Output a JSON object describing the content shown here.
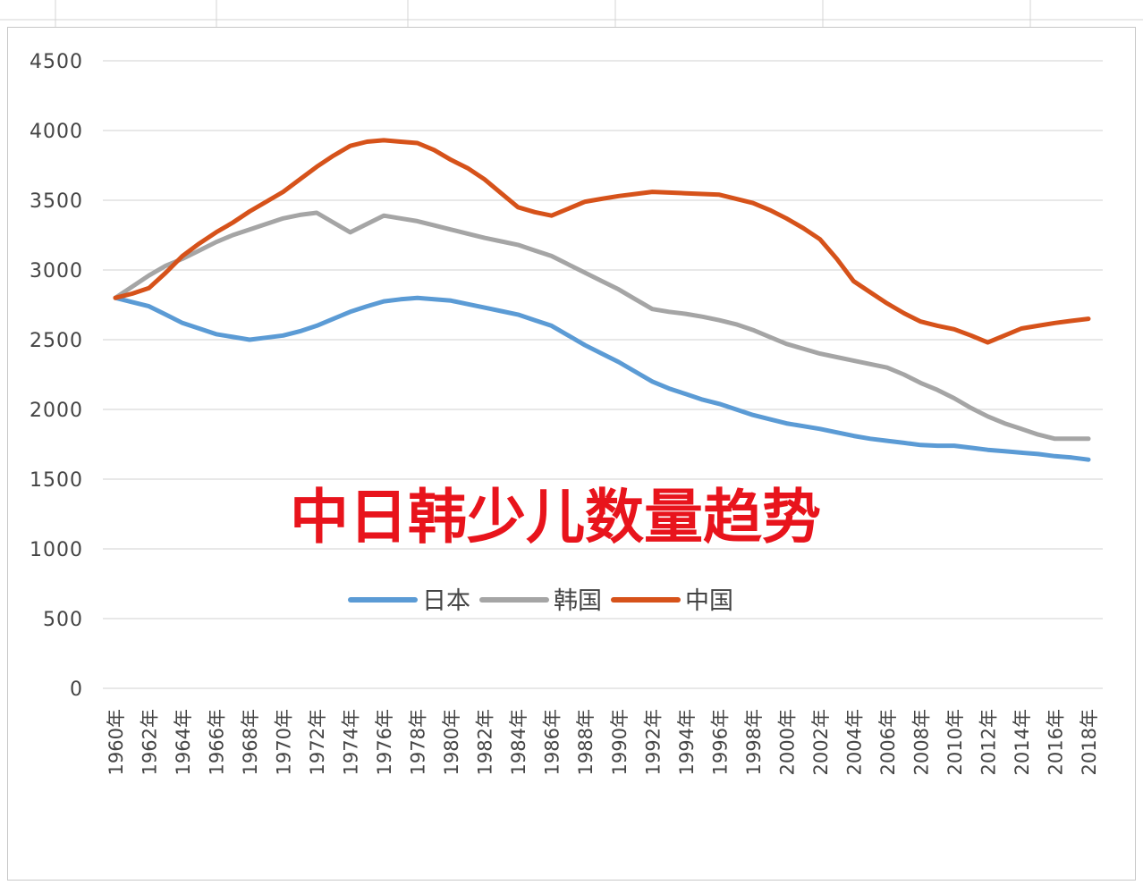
{
  "chart_data": {
    "type": "line",
    "title": "中日韩少儿数量趋势",
    "xlabel": "",
    "ylabel": "",
    "ylim": [
      0,
      4500
    ],
    "yticks": [
      0,
      500,
      1000,
      1500,
      2000,
      2500,
      3000,
      3500,
      4000,
      4500
    ],
    "grid": true,
    "legend_position": "inside-center",
    "categories": [
      "1960年",
      "1961年",
      "1962年",
      "1963年",
      "1964年",
      "1965年",
      "1966年",
      "1967年",
      "1968年",
      "1969年",
      "1970年",
      "1971年",
      "1972年",
      "1973年",
      "1974年",
      "1975年",
      "1976年",
      "1977年",
      "1978年",
      "1979年",
      "1980年",
      "1981年",
      "1982年",
      "1983年",
      "1984年",
      "1985年",
      "1986年",
      "1987年",
      "1988年",
      "1989年",
      "1990年",
      "1991年",
      "1992年",
      "1993年",
      "1994年",
      "1995年",
      "1996年",
      "1997年",
      "1998年",
      "1999年",
      "2000年",
      "2001年",
      "2002年",
      "2003年",
      "2004年",
      "2005年",
      "2006年",
      "2007年",
      "2008年",
      "2009年",
      "2010年",
      "2011年",
      "2012年",
      "2013年",
      "2014年",
      "2015年",
      "2016年",
      "2017年",
      "2018年"
    ],
    "xtick_labels": [
      "1960年",
      "1962年",
      "1964年",
      "1966年",
      "1968年",
      "1970年",
      "1972年",
      "1974年",
      "1976年",
      "1978年",
      "1980年",
      "1982年",
      "1984年",
      "1986年",
      "1988年",
      "1990年",
      "1992年",
      "1994年",
      "1996年",
      "1998年",
      "2000年",
      "2002年",
      "2004年",
      "2006年",
      "2008年",
      "2010年",
      "2012年",
      "2014年",
      "2016年",
      "2018年"
    ],
    "series": [
      {
        "name": "日本",
        "color": "#5b9bd5",
        "values": [
          2800,
          2770,
          2740,
          2680,
          2620,
          2580,
          2540,
          2520,
          2500,
          2515,
          2530,
          2560,
          2600,
          2650,
          2700,
          2740,
          2775,
          2790,
          2800,
          2790,
          2780,
          2755,
          2730,
          2705,
          2680,
          2640,
          2600,
          2530,
          2460,
          2400,
          2340,
          2270,
          2200,
          2150,
          2110,
          2070,
          2040,
          2000,
          1960,
          1930,
          1900,
          1880,
          1860,
          1835,
          1810,
          1790,
          1775,
          1760,
          1745,
          1740,
          1740,
          1725,
          1710,
          1700,
          1690,
          1680,
          1665,
          1655,
          1640
        ]
      },
      {
        "name": "韩国",
        "color": "#a5a5a5",
        "values": [
          2800,
          2880,
          2960,
          3030,
          3080,
          3140,
          3200,
          3250,
          3290,
          3330,
          3370,
          3395,
          3410,
          3340,
          3270,
          3330,
          3390,
          3370,
          3350,
          3320,
          3290,
          3260,
          3230,
          3205,
          3180,
          3140,
          3100,
          3040,
          2980,
          2920,
          2860,
          2790,
          2720,
          2700,
          2685,
          2665,
          2640,
          2610,
          2570,
          2520,
          2470,
          2435,
          2400,
          2375,
          2350,
          2325,
          2300,
          2250,
          2190,
          2140,
          2080,
          2010,
          1950,
          1900,
          1860,
          1820,
          1790,
          1790,
          1790
        ]
      },
      {
        "name": "中国",
        "color": "#d6521a",
        "values": [
          2800,
          2830,
          2870,
          2980,
          3100,
          3190,
          3270,
          3340,
          3420,
          3490,
          3560,
          3650,
          3740,
          3820,
          3890,
          3920,
          3930,
          3920,
          3910,
          3860,
          3790,
          3730,
          3650,
          3550,
          3450,
          3415,
          3390,
          3440,
          3490,
          3510,
          3530,
          3545,
          3560,
          3555,
          3550,
          3545,
          3540,
          3510,
          3480,
          3430,
          3370,
          3300,
          3220,
          3080,
          2920,
          2840,
          2760,
          2690,
          2630,
          2600,
          2575,
          2530,
          2480,
          2530,
          2580,
          2600,
          2620,
          2635,
          2650
        ]
      }
    ]
  }
}
